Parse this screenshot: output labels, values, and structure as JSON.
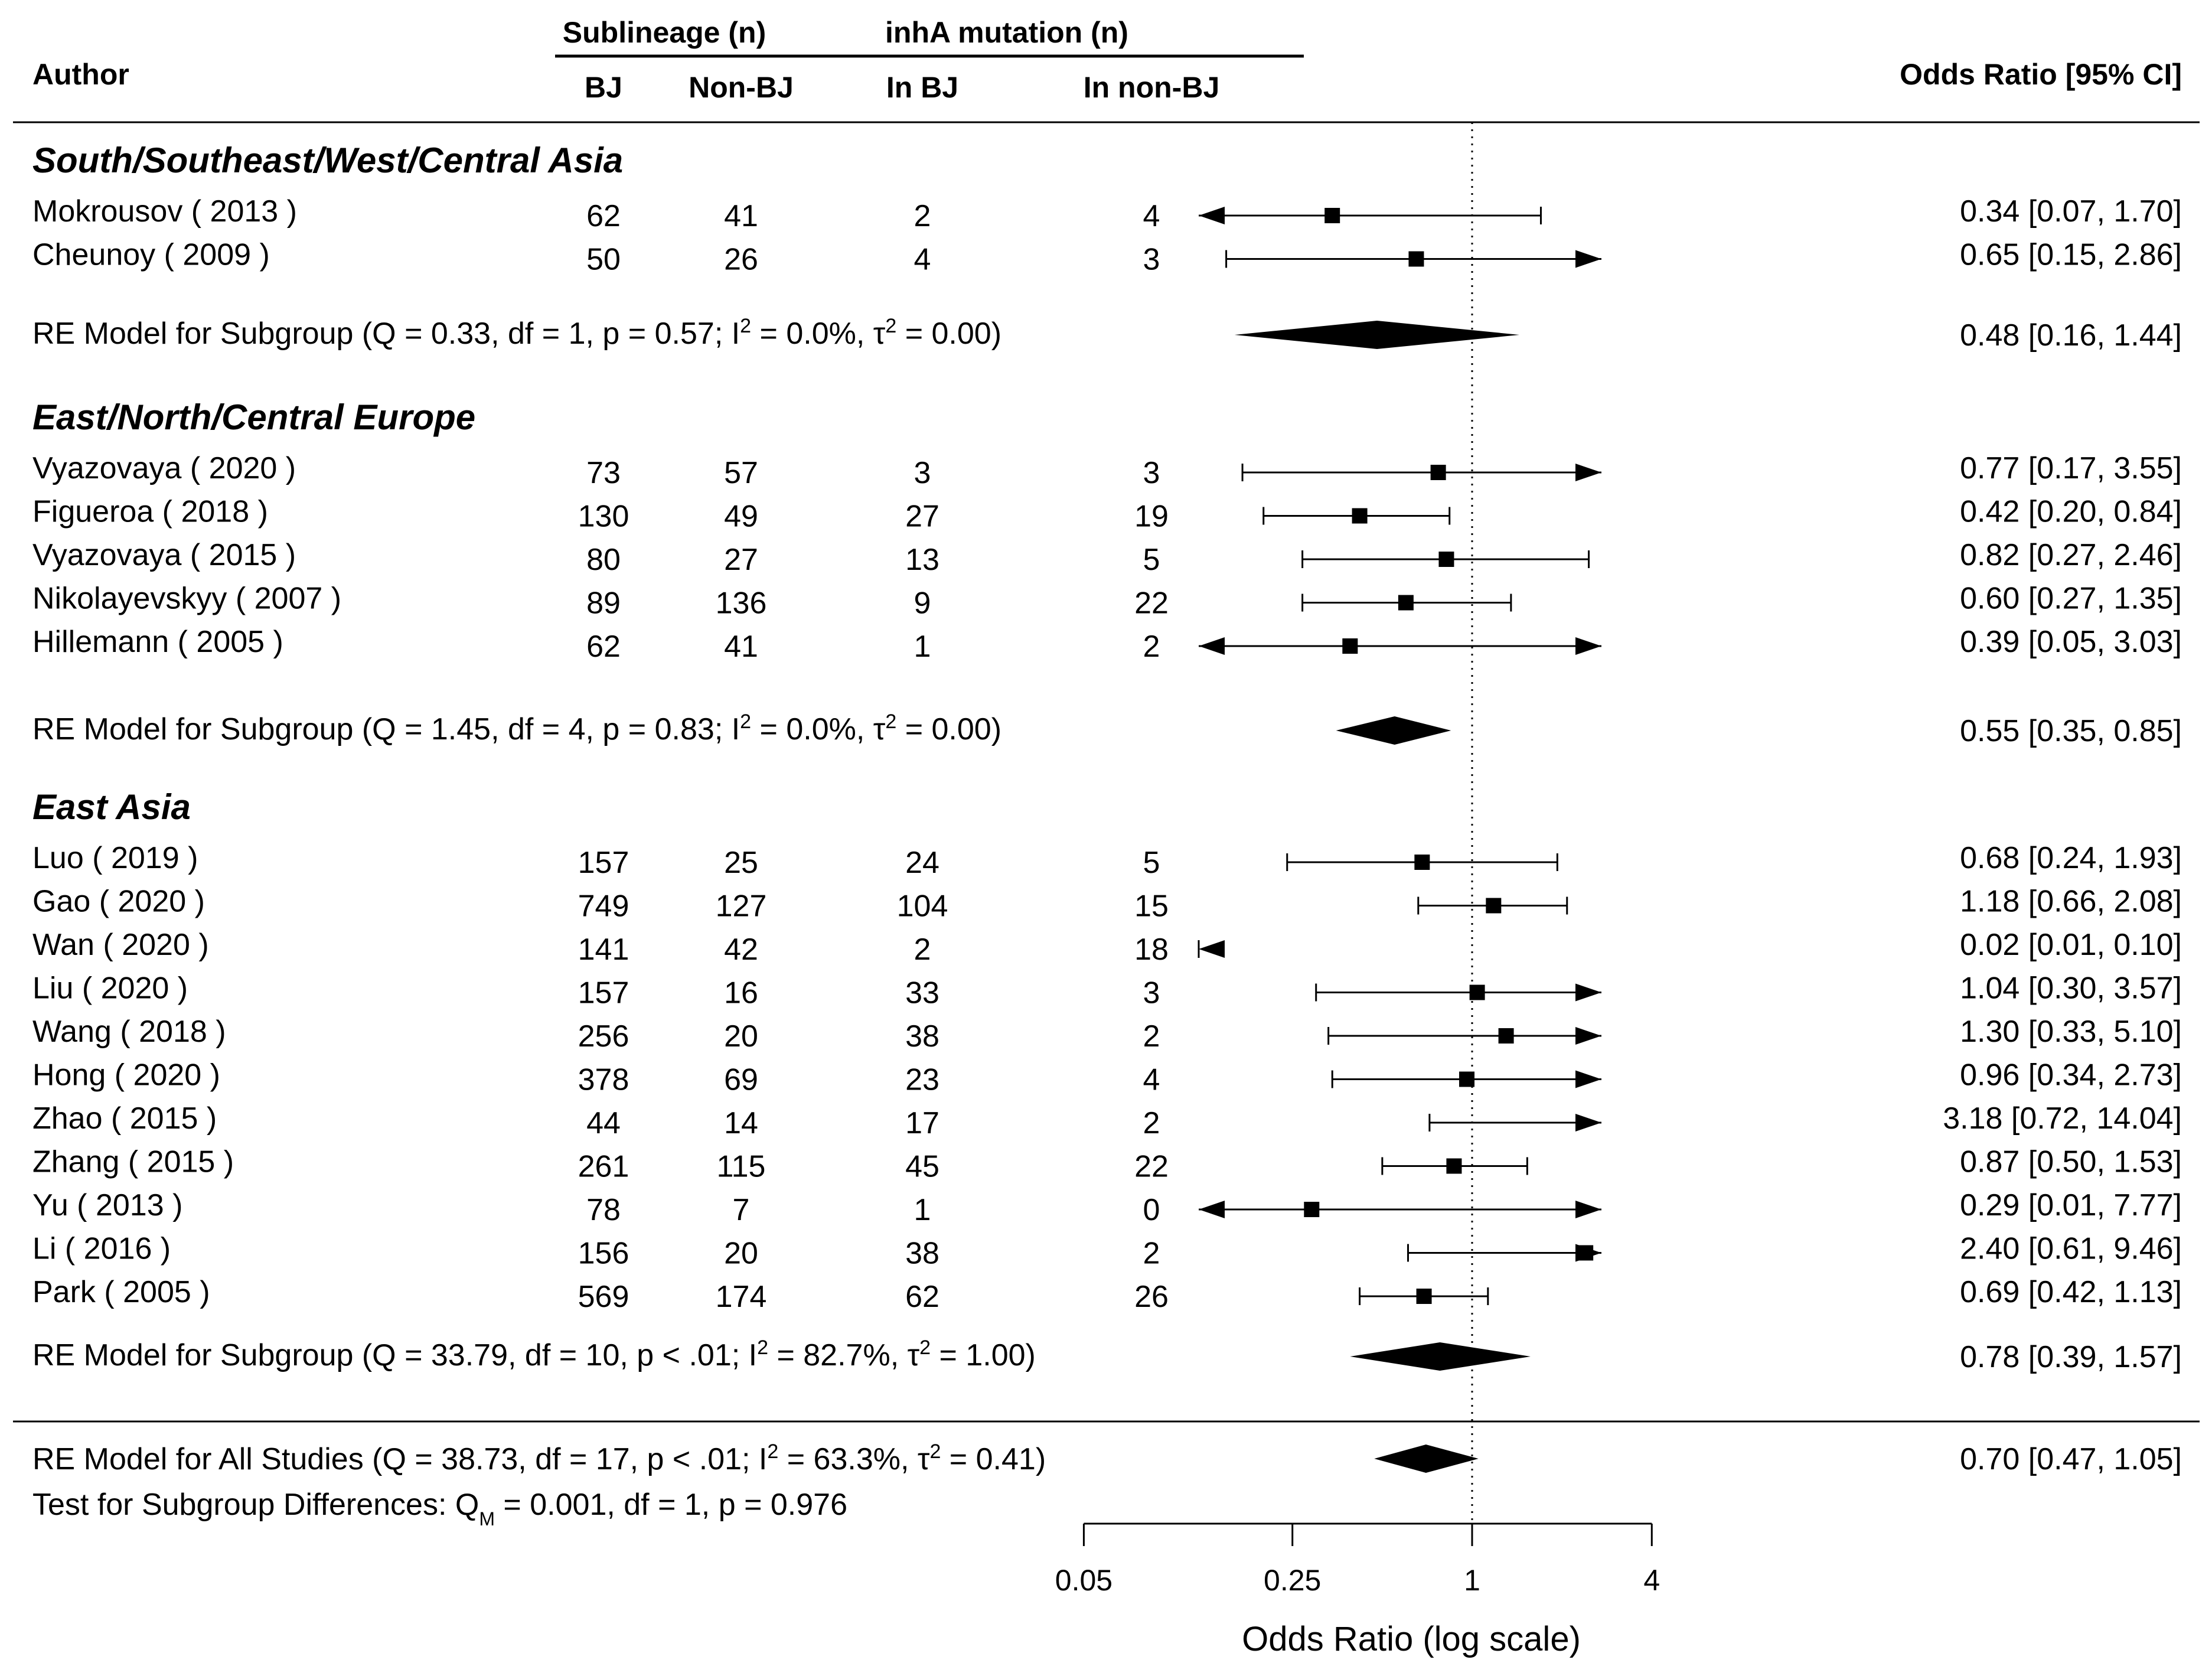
{
  "chart_data": {
    "type": "forest",
    "xlabel": "Odds Ratio (log scale)",
    "x_scale": "log",
    "reference_line": 1,
    "ticks": [
      {
        "value": 0.05,
        "label": "0.05"
      },
      {
        "value": 0.25,
        "label": "0.25"
      },
      {
        "value": 1,
        "label": "1"
      },
      {
        "value": 4,
        "label": "4"
      }
    ],
    "headers": {
      "author": "Author",
      "sublineage": "Sublineage (n)",
      "inha": "inhA mutation (n)",
      "bj": "BJ",
      "non_bj": "Non-BJ",
      "in_bj": "In BJ",
      "in_non_bj": "In non-BJ",
      "or_ci": "Odds Ratio [95% CI]"
    },
    "groups": [
      {
        "name": "South/Southeast/West/Central Asia",
        "studies": [
          {
            "author": "Mokrousov ( 2013 )",
            "bj": "62",
            "non_bj": "41",
            "in_bj": "2",
            "in_non_bj": "4",
            "or": 0.34,
            "lo": 0.07,
            "hi": 1.7,
            "label": "0.34 [0.07,  1.70]"
          },
          {
            "author": "Cheunoy ( 2009 )",
            "bj": "50",
            "non_bj": "26",
            "in_bj": "4",
            "in_non_bj": "3",
            "or": 0.65,
            "lo": 0.15,
            "hi": 2.86,
            "label": "0.65 [0.15,  2.86]"
          }
        ],
        "re_model": {
          "prefix": "RE Model for Subgroup (Q = 0.33, df = 1, p = 0.57; I",
          "mid": " = 0.0%, τ",
          "suffix": " = 0.00)",
          "sup": "2",
          "or": 0.48,
          "lo": 0.16,
          "hi": 1.44,
          "label": "0.48 [0.16, 1.44]"
        }
      },
      {
        "name": "East/North/Central Europe",
        "studies": [
          {
            "author": "Vyazovaya ( 2020 )",
            "bj": "73",
            "non_bj": "57",
            "in_bj": "3",
            "in_non_bj": "3",
            "or": 0.77,
            "lo": 0.17,
            "hi": 3.55,
            "label": "0.77 [0.17,  3.55]"
          },
          {
            "author": "Figueroa ( 2018 )",
            "bj": "130",
            "non_bj": "49",
            "in_bj": "27",
            "in_non_bj": "19",
            "or": 0.42,
            "lo": 0.2,
            "hi": 0.84,
            "label": "0.42 [0.20,  0.84]"
          },
          {
            "author": "Vyazovaya ( 2015 )",
            "bj": "80",
            "non_bj": "27",
            "in_bj": "13",
            "in_non_bj": "5",
            "or": 0.82,
            "lo": 0.27,
            "hi": 2.46,
            "label": "0.82 [0.27,  2.46]"
          },
          {
            "author": "Nikolayevskyy ( 2007 )",
            "bj": "89",
            "non_bj": "136",
            "in_bj": "9",
            "in_non_bj": "22",
            "or": 0.6,
            "lo": 0.27,
            "hi": 1.35,
            "label": "0.60 [0.27,  1.35]"
          },
          {
            "author": "Hillemann ( 2005 )",
            "bj": "62",
            "non_bj": "41",
            "in_bj": "1",
            "in_non_bj": "2",
            "or": 0.39,
            "lo": 0.05,
            "hi": 3.03,
            "label": "0.39 [0.05,  3.03]"
          }
        ],
        "re_model": {
          "prefix": "RE Model for Subgroup (Q = 1.45, df = 4, p = 0.83; I",
          "mid": " = 0.0%, τ",
          "suffix": " = 0.00)",
          "sup": "2",
          "or": 0.55,
          "lo": 0.35,
          "hi": 0.85,
          "label": "0.55 [0.35, 0.85]"
        }
      },
      {
        "name": "East Asia",
        "studies": [
          {
            "author": "Luo ( 2019 )",
            "bj": "157",
            "non_bj": "25",
            "in_bj": "24",
            "in_non_bj": "5",
            "or": 0.68,
            "lo": 0.24,
            "hi": 1.93,
            "label": "0.68 [0.24,  1.93]"
          },
          {
            "author": "Gao ( 2020 )",
            "bj": "749",
            "non_bj": "127",
            "in_bj": "104",
            "in_non_bj": "15",
            "or": 1.18,
            "lo": 0.66,
            "hi": 2.08,
            "label": "1.18 [0.66,  2.08]"
          },
          {
            "author": "Wan ( 2020 )",
            "bj": "141",
            "non_bj": "42",
            "in_bj": "2",
            "in_non_bj": "18",
            "or": 0.02,
            "lo": 0.01,
            "hi": 0.1,
            "label": "0.02 [0.01,  0.10]"
          },
          {
            "author": "Liu ( 2020 )",
            "bj": "157",
            "non_bj": "16",
            "in_bj": "33",
            "in_non_bj": "3",
            "or": 1.04,
            "lo": 0.3,
            "hi": 3.57,
            "label": "1.04 [0.30,  3.57]"
          },
          {
            "author": "Wang ( 2018 )",
            "bj": "256",
            "non_bj": "20",
            "in_bj": "38",
            "in_non_bj": "2",
            "or": 1.3,
            "lo": 0.33,
            "hi": 5.1,
            "label": "1.30 [0.33,  5.10]"
          },
          {
            "author": "Hong ( 2020 )",
            "bj": "378",
            "non_bj": "69",
            "in_bj": "23",
            "in_non_bj": "4",
            "or": 0.96,
            "lo": 0.34,
            "hi": 2.73,
            "label": "0.96 [0.34,  2.73]"
          },
          {
            "author": "Zhao ( 2015 )",
            "bj": "44",
            "non_bj": "14",
            "in_bj": "17",
            "in_non_bj": "2",
            "or": 3.18,
            "lo": 0.72,
            "hi": 14.04,
            "label": "3.18 [0.72, 14.04]"
          },
          {
            "author": "Zhang ( 2015 )",
            "bj": "261",
            "non_bj": "115",
            "in_bj": "45",
            "in_non_bj": "22",
            "or": 0.87,
            "lo": 0.5,
            "hi": 1.53,
            "label": "0.87 [0.50,  1.53]"
          },
          {
            "author": "Yu ( 2013 )",
            "bj": "78",
            "non_bj": "7",
            "in_bj": "1",
            "in_non_bj": "0",
            "or": 0.29,
            "lo": 0.01,
            "hi": 7.77,
            "label": "0.29 [0.01,  7.77]"
          },
          {
            "author": "Li ( 2016 )",
            "bj": "156",
            "non_bj": "20",
            "in_bj": "38",
            "in_non_bj": "2",
            "or": 2.4,
            "lo": 0.61,
            "hi": 9.46,
            "label": "2.40 [0.61,  9.46]"
          },
          {
            "author": "Park ( 2005 )",
            "bj": "569",
            "non_bj": "174",
            "in_bj": "62",
            "in_non_bj": "26",
            "or": 0.69,
            "lo": 0.42,
            "hi": 1.13,
            "label": "0.69 [0.42,  1.13]"
          }
        ],
        "re_model": {
          "prefix": "RE Model for Subgroup (Q = 33.79, df = 10, p < .01; I",
          "mid": " = 82.7%, τ",
          "suffix": " = 1.00)",
          "sup": "2",
          "or": 0.78,
          "lo": 0.39,
          "hi": 1.57,
          "label": "0.78 [0.39, 1.57]"
        }
      }
    ],
    "overall": {
      "prefix": "RE Model for All Studies (Q = 38.73, df = 17, p < .01; I",
      "mid": " = 63.3%, τ",
      "suffix": " = 0.41)",
      "sup": "2",
      "or": 0.7,
      "lo": 0.47,
      "hi": 1.05,
      "label": "0.70 [0.47,  1.05]"
    },
    "subgroup_test": {
      "prefix": "Test for Subgroup Differences: Q",
      "sub": "M",
      "suffix": " = 0.001, df = 1, p = 0.976"
    }
  }
}
